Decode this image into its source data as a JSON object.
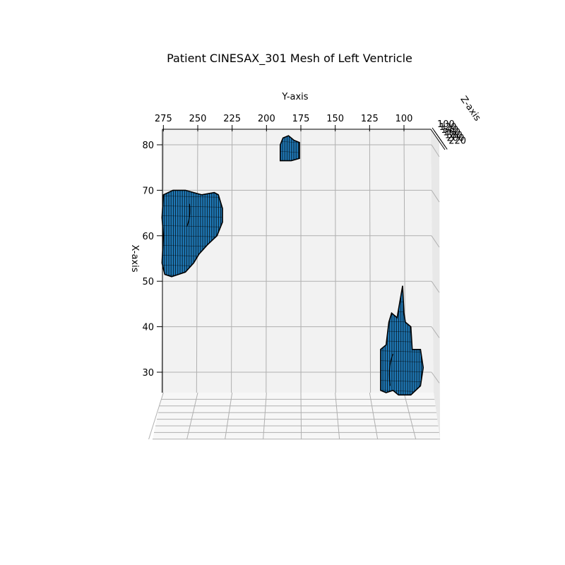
{
  "chart_data": {
    "type": "surface3d",
    "title": "Patient CINESAX_301 Mesh of Left Ventricle",
    "xlabel": "X-axis",
    "ylabel": "Y-axis",
    "zlabel": "Z-axis",
    "x_ticks": [
      30,
      40,
      50,
      60,
      70,
      80
    ],
    "y_ticks": [
      275,
      250,
      225,
      200,
      175,
      150,
      125,
      100
    ],
    "z_ticks": [
      100,
      120,
      140,
      160,
      180,
      200,
      220
    ],
    "y_range": [
      285,
      90
    ],
    "x_range": [
      24,
      82
    ],
    "grid": true,
    "mesh_color": "#1f77b4",
    "edge_color": "#000000",
    "pane_color": "#f2f2f2",
    "grid_color": "#b0b0b0",
    "meshes": [
      {
        "region": "upper-left",
        "outline": [
          [
            276,
            64
          ],
          [
            275,
            69
          ],
          [
            268,
            70
          ],
          [
            259,
            70
          ],
          [
            247,
            69
          ],
          [
            238,
            69.5
          ],
          [
            235,
            69
          ],
          [
            232,
            66
          ],
          [
            232,
            63
          ],
          [
            236,
            60
          ],
          [
            243,
            58
          ],
          [
            249,
            56
          ],
          [
            253,
            54
          ],
          [
            259,
            52
          ],
          [
            269,
            51
          ],
          [
            274,
            51.5
          ],
          [
            276,
            54
          ],
          [
            275,
            60
          ]
        ],
        "inner_curve": [
          [
            258,
            62
          ],
          [
            255,
            64
          ],
          [
            256,
            67
          ]
        ]
      },
      {
        "region": "top-center",
        "outline": [
          [
            190,
            80
          ],
          [
            188,
            81.5
          ],
          [
            184,
            82
          ],
          [
            180,
            81
          ],
          [
            176,
            80.5
          ],
          [
            176,
            77
          ],
          [
            182,
            76.5
          ],
          [
            190,
            76.5
          ]
        ]
      },
      {
        "region": "lower-right",
        "outline": [
          [
            117,
            35
          ],
          [
            113,
            36
          ],
          [
            111,
            41
          ],
          [
            109,
            43
          ],
          [
            105,
            42
          ],
          [
            101,
            49
          ],
          [
            100,
            43
          ],
          [
            99,
            41
          ],
          [
            95,
            40
          ],
          [
            94,
            35
          ],
          [
            88,
            35
          ],
          [
            86,
            31
          ],
          [
            88,
            27
          ],
          [
            95,
            25
          ],
          [
            104,
            25
          ],
          [
            108,
            26
          ],
          [
            113,
            25.5
          ],
          [
            117,
            26
          ],
          [
            117,
            31
          ]
        ],
        "inner_curve": [
          [
            110,
            27
          ],
          [
            112,
            31
          ],
          [
            108,
            34
          ]
        ]
      }
    ]
  }
}
